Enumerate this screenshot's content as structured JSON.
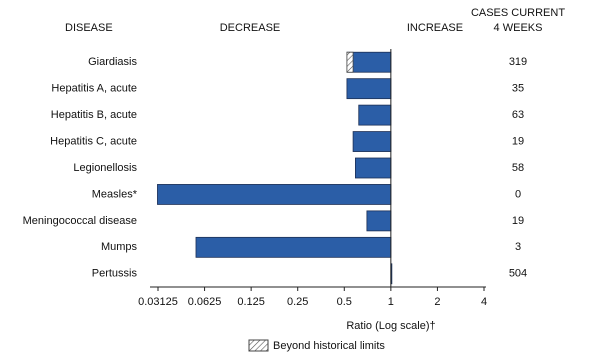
{
  "chart_data": {
    "type": "bar",
    "orientation": "horizontal",
    "log_scale": true,
    "base_value": 1,
    "headers": {
      "category": "DISEASE",
      "decrease": "DECREASE",
      "increase": "INCREASE",
      "cases": [
        "CASES CURRENT",
        "4 WEEKS"
      ]
    },
    "categories": [
      "Giardiasis",
      "Hepatitis A, acute",
      "Hepatitis B, acute",
      "Hepatitis C, acute",
      "Legionellosis",
      "Measles*",
      "Meningococcal disease",
      "Mumps",
      "Pertussis"
    ],
    "values": [
      0.52,
      0.52,
      0.62,
      0.57,
      0.59,
      0.031,
      0.7,
      0.055,
      1.01
    ],
    "historical_limits": [
      0.57,
      null,
      null,
      null,
      null,
      null,
      null,
      null,
      null
    ],
    "cases": [
      319,
      35,
      63,
      19,
      58,
      0,
      19,
      3,
      504
    ],
    "color": "#2b5ea7",
    "xlim": [
      0.03125,
      4
    ],
    "xticks": [
      0.03125,
      0.0625,
      0.125,
      0.25,
      0.5,
      1,
      2,
      4
    ],
    "xlabel": "Ratio (Log scale)†",
    "legend": "Beyond historical limits"
  }
}
